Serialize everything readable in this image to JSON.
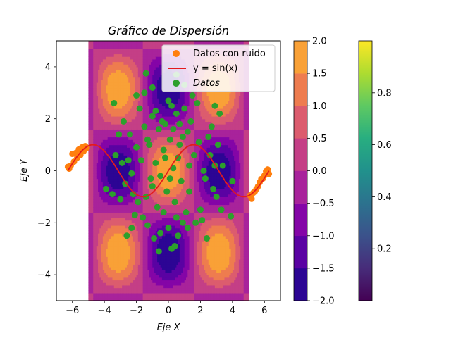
{
  "chart_data": {
    "type": "scatter",
    "title": "Gráfico de Dispersión",
    "xlabel": "Eje X",
    "ylabel": "Eje Y",
    "xlim": [
      -7,
      7
    ],
    "ylim": [
      -5,
      5
    ],
    "xticks": [
      -6,
      -4,
      -2,
      0,
      2,
      4,
      6
    ],
    "yticks": [
      -4,
      -2,
      0,
      2,
      4
    ],
    "contour": {
      "function": "sin(x)*cos(y)-like field",
      "xrange": [
        -5,
        5
      ],
      "levels": [
        -2.0,
        -1.5,
        -1.0,
        -0.5,
        0.0,
        0.5,
        1.0,
        1.5,
        2.0
      ],
      "colormap": "plasma"
    },
    "colorbar_contour": {
      "ticks": [
        "2.0",
        "1.5",
        "1.0",
        "0.5",
        "0.0",
        "−0.5",
        "−1.0",
        "−1.5",
        "−2.0"
      ]
    },
    "colorbar_viridis": {
      "ticks": [
        "0.8",
        "0.6",
        "0.4",
        "0.2"
      ],
      "range": [
        0,
        1
      ],
      "colormap": "viridis"
    },
    "series": [
      {
        "name": "Datos con ruido",
        "kind": "scatter",
        "color": "#ff7f0e",
        "points": [
          [
            -6.28,
            0.15
          ],
          [
            -6.2,
            0.08
          ],
          [
            -6.1,
            0.2
          ],
          [
            -6.0,
            0.65
          ],
          [
            -5.9,
            0.35
          ],
          [
            -5.8,
            0.68
          ],
          [
            -5.7,
            0.5
          ],
          [
            -5.6,
            0.82
          ],
          [
            -5.5,
            0.6
          ],
          [
            -5.4,
            0.9
          ],
          [
            -5.3,
            0.75
          ],
          [
            -5.2,
            0.95
          ],
          [
            -5.1,
            0.88
          ],
          [
            5.1,
            -0.95
          ],
          [
            5.2,
            -1.08
          ],
          [
            5.3,
            -0.85
          ],
          [
            5.4,
            -0.8
          ],
          [
            5.5,
            -0.7
          ],
          [
            5.6,
            -0.6
          ],
          [
            5.7,
            -0.45
          ],
          [
            5.8,
            -0.32
          ],
          [
            5.9,
            -0.3
          ],
          [
            6.0,
            -0.18
          ],
          [
            6.1,
            -0.02
          ],
          [
            6.2,
            0.05
          ],
          [
            6.28,
            -0.12
          ]
        ]
      },
      {
        "name": "y = sin(x)",
        "kind": "line",
        "color": "#e41a1c",
        "xrange": [
          -6.28,
          6.28
        ]
      },
      {
        "name": "Datos",
        "kind": "scatter",
        "color": "#2ca02c",
        "points": [
          [
            0.2,
            2.5
          ],
          [
            -0.2,
            1.8
          ],
          [
            0.5,
            2.2
          ],
          [
            -0.6,
            1.6
          ],
          [
            1.0,
            2.4
          ],
          [
            -1.0,
            2.1
          ],
          [
            0.1,
            1.2
          ],
          [
            -0.3,
            0.8
          ],
          [
            0.6,
            0.5
          ],
          [
            -0.8,
            0.3
          ],
          [
            1.4,
            1.9
          ],
          [
            -1.5,
            1.7
          ],
          [
            0.9,
            1.3
          ],
          [
            -1.2,
            1.0
          ],
          [
            1.8,
            2.6
          ],
          [
            -1.8,
            2.4
          ],
          [
            0.3,
            0.1
          ],
          [
            -0.5,
            -0.2
          ],
          [
            0.8,
            -0.4
          ],
          [
            -1.0,
            -0.6
          ],
          [
            1.3,
            -0.8
          ],
          [
            -1.4,
            -1.0
          ],
          [
            0.4,
            -1.2
          ],
          [
            -0.7,
            -1.4
          ],
          [
            1.1,
            -1.6
          ],
          [
            -1.9,
            -1.2
          ],
          [
            2.0,
            -1.5
          ],
          [
            -2.2,
            -0.9
          ],
          [
            2.3,
            -0.3
          ],
          [
            -2.5,
            0.4
          ],
          [
            2.6,
            0.6
          ],
          [
            -2.7,
            -0.5
          ],
          [
            0.0,
            -2.2
          ],
          [
            0.6,
            -2.5
          ],
          [
            -0.5,
            -2.4
          ],
          [
            1.2,
            -2.2
          ],
          [
            -1.3,
            -2.1
          ],
          [
            0.2,
            -3.0
          ],
          [
            -0.6,
            -3.1
          ],
          [
            0.4,
            -2.9
          ],
          [
            1.7,
            -2.0
          ],
          [
            -1.6,
            -1.8
          ],
          [
            2.9,
            0.2
          ],
          [
            -2.9,
            0.3
          ],
          [
            3.0,
            -1.0
          ],
          [
            -3.0,
            -1.1
          ],
          [
            3.3,
            -1.5
          ],
          [
            -3.5,
            -0.9
          ],
          [
            2.5,
            1.3
          ],
          [
            -2.4,
            1.4
          ],
          [
            2.7,
            1.7
          ],
          [
            -2.8,
            1.9
          ],
          [
            3.2,
            2.2
          ],
          [
            -3.1,
            1.4
          ],
          [
            3.4,
            0.2
          ],
          [
            -3.3,
            0.6
          ],
          [
            3.9,
            -1.75
          ],
          [
            4.0,
            -0.4
          ],
          [
            -3.9,
            -0.7
          ],
          [
            -1.4,
            3.75
          ],
          [
            1.0,
            3.3
          ],
          [
            -1.0,
            3.2
          ],
          [
            0.5,
            3.7
          ],
          [
            0.0,
            2.7
          ],
          [
            1.5,
            2.9
          ],
          [
            -1.5,
            3.0
          ],
          [
            0.7,
            1.0
          ],
          [
            -0.1,
            -0.8
          ],
          [
            1.6,
            0.6
          ],
          [
            -1.7,
            0.4
          ],
          [
            2.1,
            -1.9
          ],
          [
            -2.1,
            -1.7
          ],
          [
            2.4,
            -2.6
          ],
          [
            -2.3,
            -2.2
          ],
          [
            0.9,
            -2.0
          ],
          [
            -0.9,
            -2.6
          ],
          [
            1.9,
            1.1
          ],
          [
            -2.0,
            0.9
          ],
          [
            2.2,
            0.0
          ],
          [
            -2.3,
            -0.1
          ],
          [
            0.3,
            1.6
          ],
          [
            -0.4,
            1.9
          ],
          [
            0.7,
            1.8
          ],
          [
            -0.8,
            2.3
          ],
          [
            1.2,
            1.5
          ],
          [
            -1.3,
            1.2
          ],
          [
            0.1,
            -0.3
          ],
          [
            -0.2,
            0.5
          ],
          [
            0.5,
            -1.8
          ],
          [
            -0.3,
            -1.6
          ],
          [
            2.8,
            -0.7
          ],
          [
            -2.6,
            -2.5
          ],
          [
            3.1,
            1.0
          ],
          [
            -3.4,
            2.6
          ],
          [
            2.9,
            2.5
          ],
          [
            -2.0,
            2.9
          ],
          [
            1.3,
            0.2
          ],
          [
            -1.1,
            -0.3
          ]
        ]
      }
    ],
    "legend": {
      "placement": "top-right",
      "entries": [
        "Datos con ruido",
        "y = sin(x)",
        "Datos"
      ]
    }
  }
}
